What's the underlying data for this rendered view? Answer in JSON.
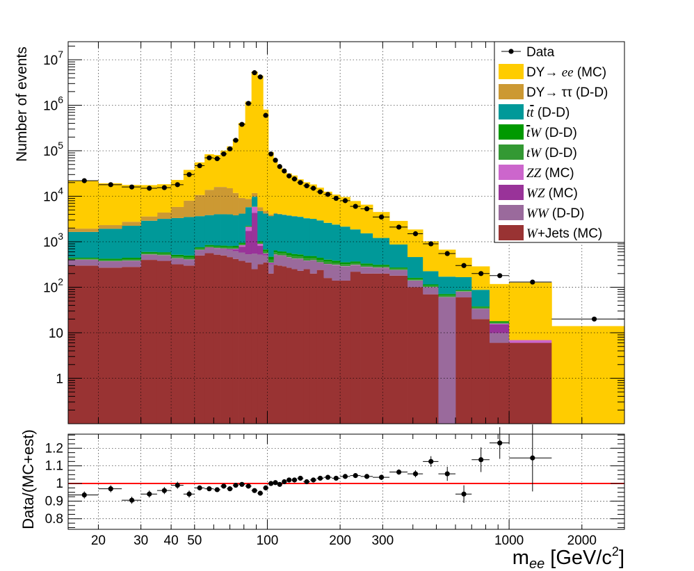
{
  "chart_data": [
    {
      "type": "stacked-histogram",
      "ylabel": "Number of events",
      "yscale": "log",
      "xscale": "log",
      "ylim": [
        0.1,
        25000000
      ],
      "xlim": [
        15,
        3000
      ],
      "grid": true,
      "legend_placement": "top-right",
      "y_tick_labels": [
        {
          "value": 1,
          "text": "1"
        },
        {
          "value": 10,
          "text": "10"
        },
        {
          "value": 100,
          "base": "10",
          "exp": "2"
        },
        {
          "value": 1000,
          "base": "10",
          "exp": "3"
        },
        {
          "value": 10000,
          "base": "10",
          "exp": "4"
        },
        {
          "value": 100000,
          "base": "10",
          "exp": "5"
        },
        {
          "value": 1000000,
          "base": "10",
          "exp": "6"
        },
        {
          "value": 10000000,
          "base": "10",
          "exp": "7"
        }
      ],
      "bin_edges": [
        15,
        20,
        25,
        30,
        35,
        40,
        45,
        50,
        55,
        60,
        64,
        68,
        72,
        76,
        81,
        86,
        91,
        96,
        101,
        106,
        110,
        115,
        120,
        126,
        133,
        141,
        150,
        160,
        171,
        185,
        200,
        220,
        243,
        273,
        320,
        380,
        440,
        510,
        600,
        700,
        830,
        1000,
        1500,
        3000
      ],
      "series": [
        {
          "name": "W+Jets (MC)",
          "legend_italic": "W",
          "legend_rest": "+Jets (MC)",
          "color": "#993333",
          "values": [
            300,
            270,
            280,
            400,
            380,
            320,
            300,
            500,
            560,
            520,
            500,
            460,
            420,
            380,
            350,
            250,
            320,
            350,
            200,
            310,
            300,
            290,
            270,
            250,
            230,
            250,
            200,
            240,
            160,
            140,
            140,
            220,
            200,
            200,
            180,
            100,
            70,
            0,
            60,
            20,
            6,
            6,
            0
          ]
        },
        {
          "name": "WW (D-D)",
          "legend_italic": "WW",
          "legend_rest": " (D-D)",
          "color": "#9a6a9c",
          "values": [
            100,
            100,
            100,
            120,
            120,
            110,
            100,
            150,
            170,
            180,
            180,
            190,
            200,
            200,
            180,
            300,
            200,
            150,
            120,
            200,
            190,
            200,
            180,
            170,
            190,
            130,
            190,
            110,
            160,
            170,
            150,
            90,
            80,
            70,
            60,
            40,
            30,
            60,
            20,
            13,
            3.8,
            0,
            0
          ]
        },
        {
          "name": "WZ (MC)",
          "legend_italic": "WZ",
          "legend_rest": " (MC)",
          "color": "#993399",
          "values": [
            3,
            3,
            3,
            4,
            4,
            4,
            5,
            8,
            12,
            15,
            20,
            30,
            60,
            200,
            1200,
            3800,
            300,
            40,
            20,
            10,
            8,
            6,
            5,
            5,
            4,
            4,
            3,
            3,
            3,
            2,
            2,
            2,
            1.5,
            1.2,
            1,
            0.8,
            0.8,
            0.6,
            0.5,
            0.5,
            5.6,
            0,
            0
          ]
        },
        {
          "name": "ZZ (MC)",
          "legend_italic": "ZZ",
          "legend_rest": " (MC)",
          "color": "#cc66cc",
          "values": [
            2,
            2,
            2,
            3,
            3,
            3,
            4,
            6,
            8,
            10,
            12,
            15,
            20,
            60,
            400,
            1500,
            80,
            15,
            8,
            6,
            5,
            4,
            3,
            3,
            3,
            2,
            2,
            2,
            2,
            1.5,
            1.2,
            1,
            1,
            0.8,
            0.6,
            0.5,
            0.5,
            0.4,
            0.3,
            0.3,
            0.5,
            0.9,
            0
          ]
        },
        {
          "name": "tW (D-D)",
          "legend_italic": "tW",
          "legend_rest": " (D-D)",
          "color": "#339933",
          "values": [
            20,
            25,
            30,
            35,
            40,
            40,
            45,
            45,
            50,
            50,
            55,
            55,
            55,
            55,
            60,
            60,
            60,
            60,
            60,
            60,
            55,
            55,
            55,
            55,
            50,
            50,
            45,
            45,
            40,
            35,
            30,
            28,
            25,
            20,
            15,
            10,
            7,
            5,
            3,
            2,
            1,
            0,
            0
          ]
        },
        {
          "name": "tbarW (D-D)",
          "legend_italic": "tbarW",
          "legend_rest": " (D-D)",
          "color": "#009900",
          "values": [
            20,
            25,
            30,
            35,
            40,
            40,
            45,
            45,
            50,
            50,
            55,
            55,
            55,
            55,
            60,
            60,
            60,
            60,
            60,
            60,
            55,
            55,
            55,
            55,
            50,
            50,
            45,
            45,
            40,
            35,
            30,
            28,
            25,
            20,
            15,
            10,
            7,
            5,
            3,
            2,
            1,
            0,
            0
          ]
        },
        {
          "name": "ttbar (D-D)",
          "legend_italic": "ttbar",
          "legend_rest": " (D-D)",
          "color": "#009999",
          "values": [
            1200,
            1500,
            1800,
            2300,
            2600,
            2800,
            3000,
            2900,
            3000,
            3200,
            3200,
            3200,
            3000,
            3200,
            3500,
            3800,
            3700,
            3500,
            3200,
            3500,
            3400,
            3300,
            3200,
            3100,
            3000,
            2800,
            2700,
            2500,
            2200,
            2000,
            1800,
            1500,
            1200,
            900,
            600,
            300,
            110,
            100,
            80,
            50,
            0,
            0,
            0
          ]
        },
        {
          "name": "DY→ττ (D-D)",
          "legend_italic": "",
          "legend_rest": "DY→ ττ (D-D)",
          "color": "#cc9933",
          "values": [
            300,
            400,
            500,
            700,
            1200,
            2500,
            4500,
            7000,
            10000,
            12000,
            12000,
            11000,
            8000,
            5000,
            3000,
            2000,
            1000,
            600,
            300,
            150,
            100,
            60,
            40,
            30,
            20,
            15,
            10,
            8,
            6,
            4,
            3,
            2,
            1,
            0.5,
            0.3,
            0.2,
            0.1,
            0,
            0,
            0,
            0,
            0,
            0
          ]
        },
        {
          "name": "DY→ee (MC)",
          "legend_italic": "ee",
          "legend_rest": " (MC)",
          "legend_prefix": "DY→ ",
          "color": "#ffcc00",
          "values": [
            20000,
            17000,
            15000,
            14000,
            14000,
            17000,
            30000,
            45000,
            70000,
            65000,
            85000,
            110000,
            170000,
            400000,
            1200000,
            5500000,
            4500000,
            800000,
            90000,
            60000,
            40000,
            34000,
            28000,
            25000,
            20000,
            17000,
            15000,
            12500,
            10000,
            8500,
            7500,
            6000,
            5000,
            3300,
            2000,
            1400,
            800,
            500,
            280,
            200,
            100,
            120,
            14
          ]
        },
        {
          "name": "Data",
          "type": "points",
          "color": "#000000",
          "x": [
            17.5,
            22.5,
            27.5,
            32.5,
            37.5,
            42.5,
            47.5,
            52.5,
            57.5,
            62,
            66,
            70,
            74,
            78.5,
            83.5,
            88.5,
            93.5,
            98.5,
            103.5,
            108,
            112.5,
            117.5,
            123,
            129.5,
            137,
            145.5,
            155,
            165.5,
            178,
            192.5,
            210,
            231.5,
            258,
            296.5,
            350,
            410,
            475,
            555,
            650,
            765,
            915,
            1250,
            2250
          ],
          "values": [
            22000,
            18000,
            16000,
            15000,
            15500,
            18000,
            30000,
            47000,
            70000,
            67000,
            85000,
            110000,
            170000,
            380000,
            1100000,
            5200000,
            4200000,
            600000,
            85000,
            62000,
            45000,
            36000,
            28000,
            24000,
            20000,
            17000,
            15000,
            12500,
            11000,
            9000,
            8000,
            6000,
            5300,
            3500,
            2100,
            1500,
            900,
            550,
            300,
            200,
            180,
            130,
            20
          ]
        }
      ]
    },
    {
      "type": "scatter",
      "ylabel": "Data/(MC+est)",
      "xlabel_main": "m",
      "xlabel_sub": "ee",
      "xlabel_unit": " [GeV/c",
      "xlabel_sup": "2",
      "xlabel_close": "]",
      "xscale": "log",
      "xlim": [
        15,
        3000
      ],
      "ylim": [
        0.74,
        1.28
      ],
      "reference_line": 1,
      "reference_color": "#ff0000",
      "y_tick_labels": [
        "0.8",
        "0.9",
        "1",
        "1.1",
        "1.2"
      ],
      "y_ticks": [
        0.8,
        0.9,
        1,
        1.1,
        1.2
      ],
      "x_tick_labels": [
        "20",
        "30",
        "40",
        "50",
        "100",
        "200",
        "300",
        "1000",
        "2000"
      ],
      "x_ticks": [
        20,
        30,
        40,
        50,
        100,
        200,
        300,
        1000,
        2000
      ],
      "points": {
        "x": [
          17.5,
          22.5,
          27.5,
          32.5,
          37.5,
          42.5,
          47.5,
          52.5,
          57.5,
          62,
          66,
          70,
          74,
          78.5,
          83.5,
          88.5,
          93.5,
          98.5,
          103.5,
          108,
          112.5,
          117.5,
          123,
          129.5,
          137,
          145.5,
          155,
          165.5,
          178,
          192.5,
          210,
          231.5,
          258,
          296.5,
          350,
          410,
          475,
          555,
          650,
          765,
          915,
          1250
        ],
        "y": [
          0.935,
          0.97,
          0.905,
          0.94,
          0.96,
          0.99,
          0.94,
          0.975,
          0.97,
          0.965,
          0.985,
          0.97,
          0.99,
          0.995,
          0.985,
          0.96,
          0.945,
          0.975,
          1.0,
          1.005,
          0.995,
          1.01,
          1.02,
          1.02,
          1.03,
          1.01,
          1.02,
          1.03,
          1.035,
          1.03,
          1.04,
          1.045,
          1.04,
          1.035,
          1.065,
          1.055,
          1.125,
          1.055,
          0.94,
          1.135,
          1.23,
          1.145
        ],
        "err": [
          0.02,
          0.02,
          0.02,
          0.02,
          0.02,
          0.02,
          0.02,
          0.01,
          0.01,
          0.01,
          0.01,
          0.01,
          0.01,
          0.01,
          0.005,
          0.005,
          0.005,
          0.01,
          0.01,
          0.01,
          0.01,
          0.01,
          0.01,
          0.01,
          0.01,
          0.01,
          0.01,
          0.01,
          0.01,
          0.01,
          0.01,
          0.01,
          0.01,
          0.015,
          0.015,
          0.02,
          0.03,
          0.04,
          0.05,
          0.07,
          0.09,
          0.19
        ]
      }
    }
  ],
  "colors": {
    "frame": "#000000",
    "background": "#ffffff"
  }
}
